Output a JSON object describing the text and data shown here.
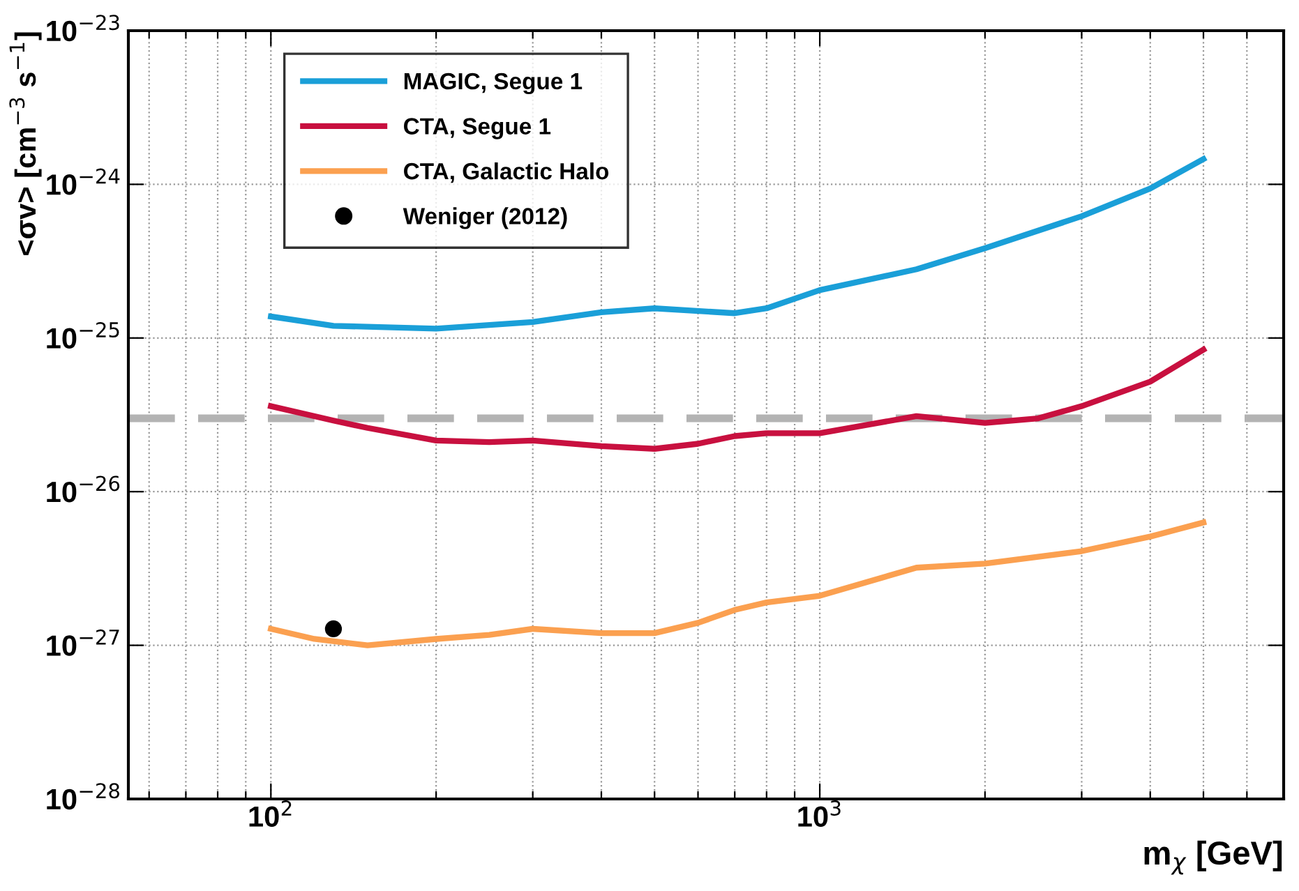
{
  "chart_data": {
    "type": "line",
    "xlabel": "m$_{χ}$ [GeV]",
    "ylabel": "<σv> [cm$^{−3}$ s$^{−1}$]",
    "log": "xy",
    "grid": true,
    "legend": "top left",
    "line_style": "solid",
    "marker": "none",
    "xlim": [
      55,
      7000
    ],
    "ylim": [
      1e-28,
      1e-23
    ],
    "xticks": [
      {
        "value": 60,
        "label": null
      },
      {
        "value": 70,
        "label": null
      },
      {
        "value": 80,
        "label": null
      },
      {
        "value": 90,
        "label": null
      },
      {
        "value": 100,
        "label": "10$^{2}$"
      },
      {
        "value": 200,
        "label": null
      },
      {
        "value": 300,
        "label": null
      },
      {
        "value": 400,
        "label": null
      },
      {
        "value": 500,
        "label": null
      },
      {
        "value": 600,
        "label": null
      },
      {
        "value": 700,
        "label": null
      },
      {
        "value": 800,
        "label": null
      },
      {
        "value": 900,
        "label": null
      },
      {
        "value": 1000,
        "label": "10$^{3}$"
      },
      {
        "value": 2000,
        "label": null
      },
      {
        "value": 3000,
        "label": null
      },
      {
        "value": 4000,
        "label": null
      },
      {
        "value": 5000,
        "label": null
      },
      {
        "value": 6000,
        "label": null
      },
      {
        "value": 7000,
        "label": null
      }
    ],
    "yticks": [
      {
        "value": 1e-28,
        "label": "10$^{−28}$"
      },
      {
        "value": 1e-27,
        "label": "10$^{−27}$"
      },
      {
        "value": 1e-26,
        "label": "10$^{−26}$"
      },
      {
        "value": 1e-25,
        "label": "10$^{−25}$"
      },
      {
        "value": 1e-24,
        "label": "10$^{−24}$"
      },
      {
        "value": 1e-23,
        "label": "10$^{−23}$"
      }
    ],
    "ref_lines": [
      {
        "axis": "y",
        "value": 3e-26,
        "color": "#b3b3b3",
        "line_style": "dashed"
      }
    ],
    "series": [
      {
        "name": "MAGIC, Segue 1",
        "color": "#1a9fd8",
        "x": [
          100,
          130,
          200,
          300,
          400,
          500,
          700,
          800,
          1000,
          1500,
          2000,
          3000,
          4000,
          5000
        ],
        "values": [
          1.38e-25,
          1.2e-25,
          1.15e-25,
          1.27e-25,
          1.47e-25,
          1.56e-25,
          1.45e-25,
          1.56e-25,
          2.05e-25,
          2.8e-25,
          3.84e-25,
          6.2e-25,
          9.4e-25,
          1.46e-24
        ]
      },
      {
        "name": "CTA, Segue 1",
        "color": "#c8103f",
        "x": [
          100,
          130,
          150,
          200,
          250,
          300,
          400,
          500,
          600,
          700,
          800,
          1000,
          1500,
          2000,
          2500,
          3000,
          4000,
          5000
        ],
        "values": [
          3.6e-26,
          2.9e-26,
          2.6e-26,
          2.15e-26,
          2.1e-26,
          2.15e-26,
          1.98e-26,
          1.9e-26,
          2.05e-26,
          2.3e-26,
          2.4e-26,
          2.4e-26,
          3.1e-26,
          2.8e-26,
          3e-26,
          3.6e-26,
          5.2e-26,
          8.4e-26
        ]
      },
      {
        "name": "CTA, Galactic Halo",
        "color": "#fba050",
        "x": [
          100,
          120,
          150,
          200,
          250,
          300,
          400,
          500,
          600,
          700,
          800,
          1000,
          1500,
          2000,
          3000,
          4000,
          5000
        ],
        "values": [
          1.28e-27,
          1.1e-27,
          1e-27,
          1.1e-27,
          1.17e-27,
          1.28e-27,
          1.2e-27,
          1.2e-27,
          1.4e-27,
          1.7e-27,
          1.9e-27,
          2.1e-27,
          3.2e-27,
          3.4e-27,
          4.1e-27,
          5.1e-27,
          6.3e-27
        ]
      },
      {
        "name": "Weniger (2012)",
        "type": "scatter",
        "marker": "circle",
        "color": "#000000",
        "x": [
          130
        ],
        "values": [
          1.28e-27
        ]
      }
    ]
  }
}
